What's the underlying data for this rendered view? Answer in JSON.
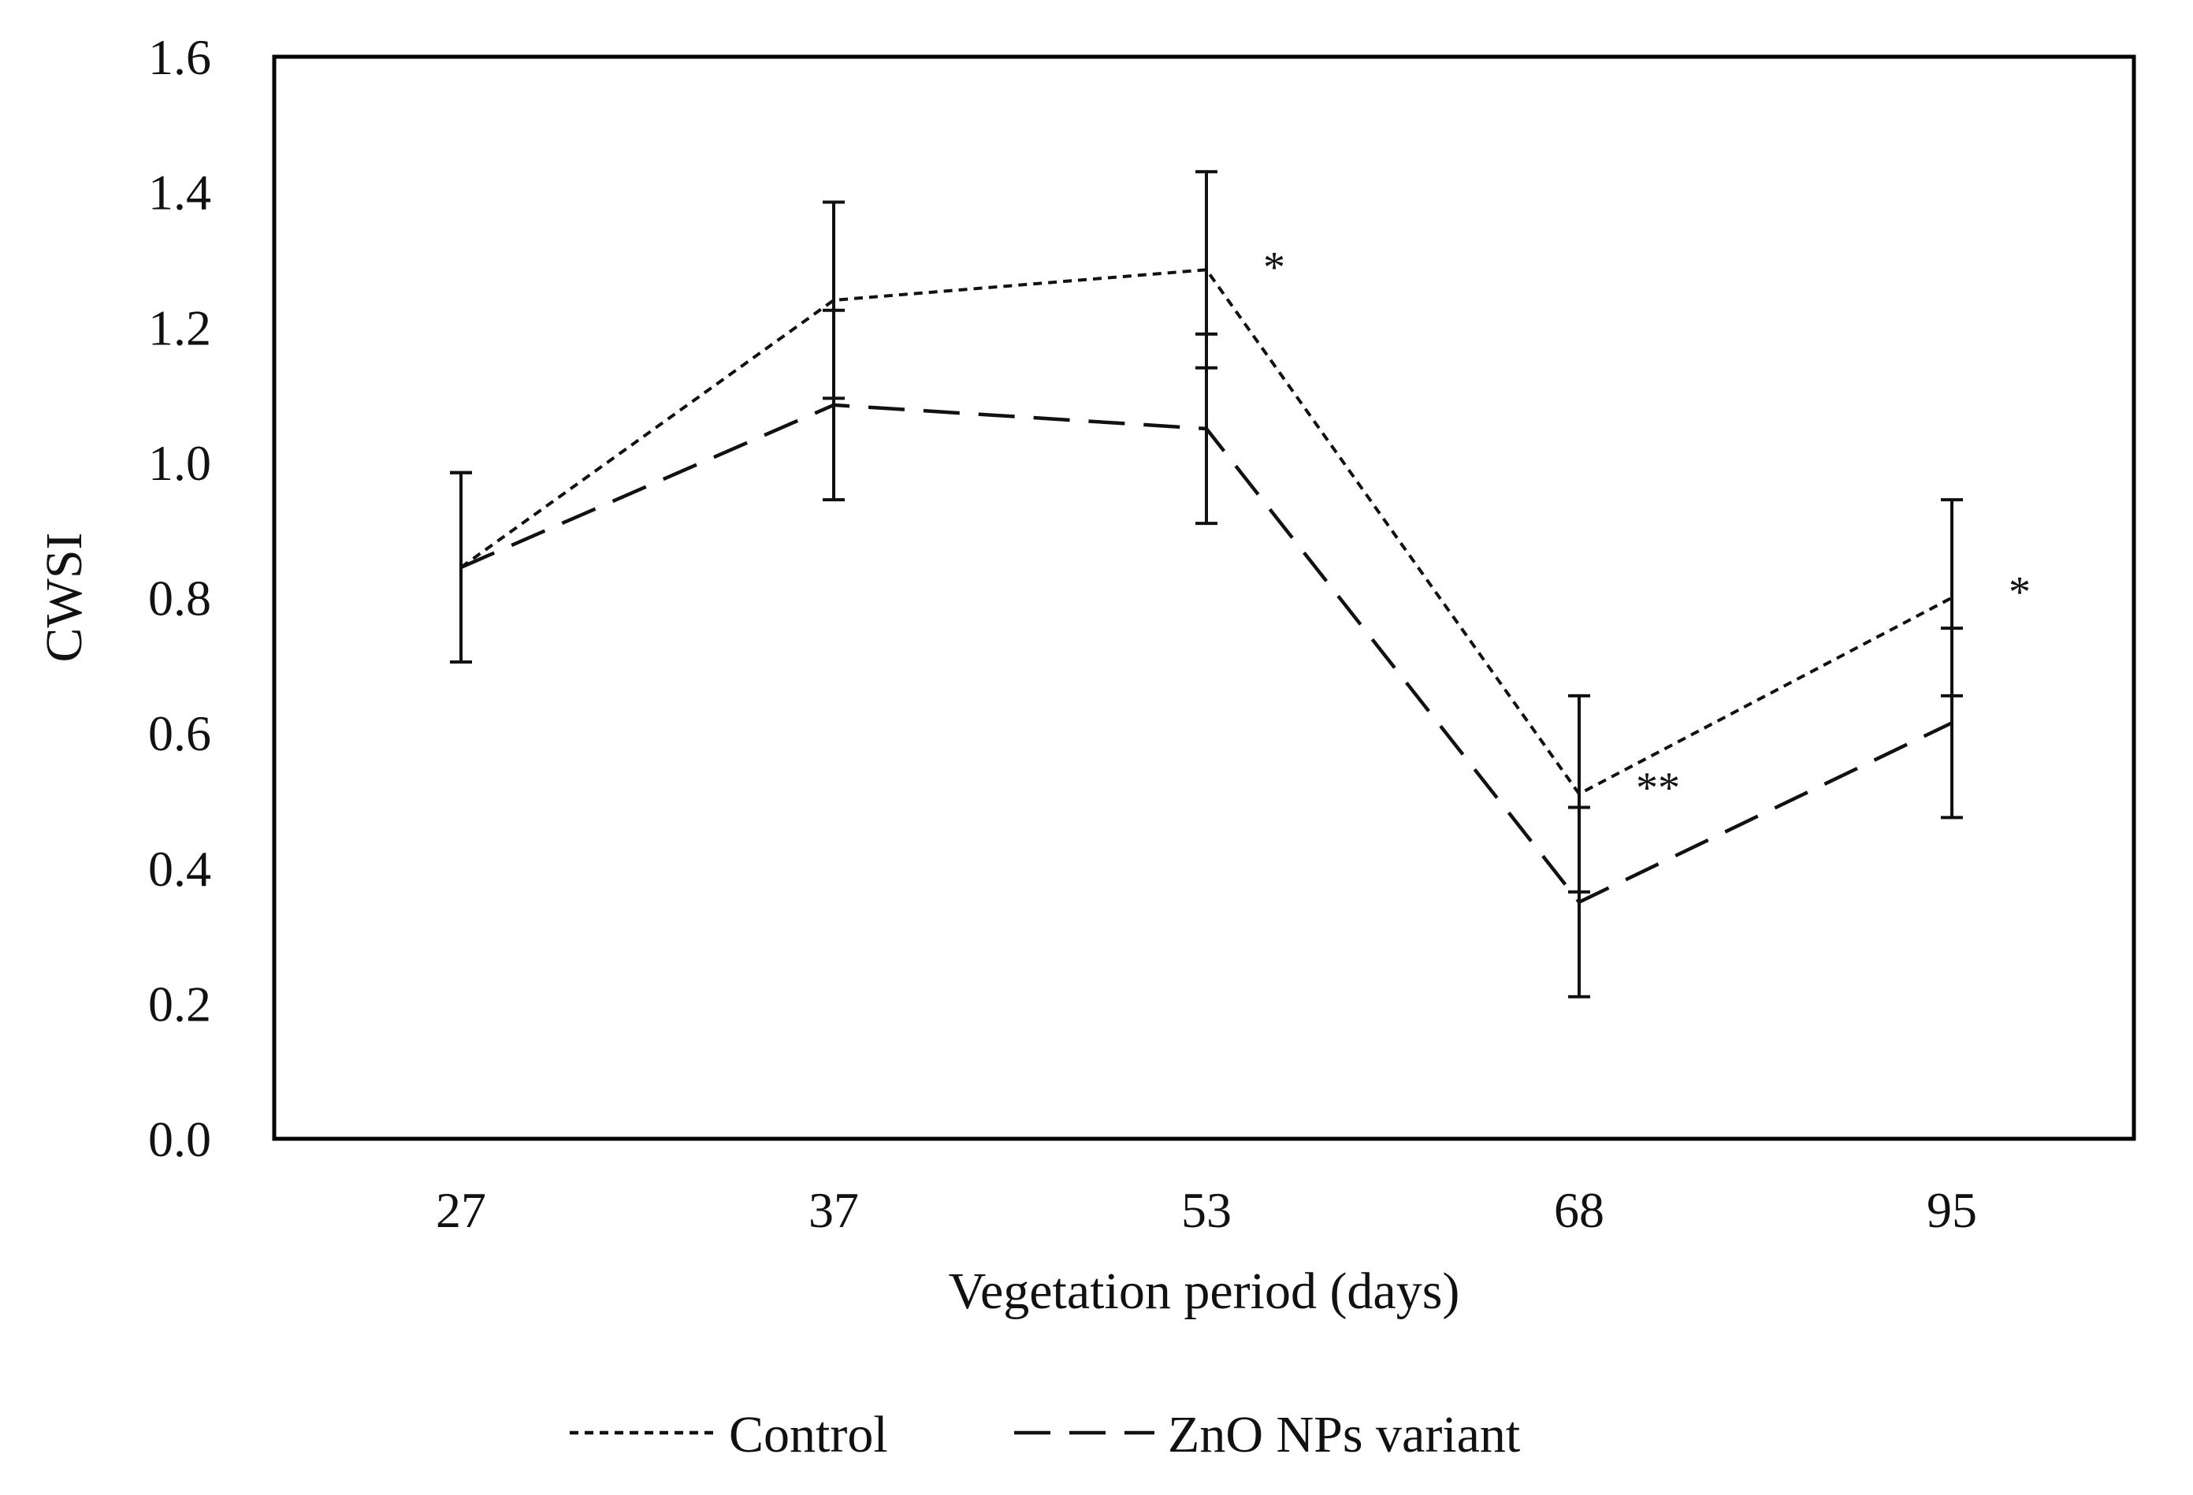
{
  "chart_data": {
    "type": "line",
    "title": "",
    "xlabel": "Vegetation period (days)",
    "ylabel": "CWSI",
    "categories": [
      "27",
      "37",
      "53",
      "68",
      "95"
    ],
    "ylim": [
      0,
      1.6
    ],
    "yticks": [
      "0.0",
      "0.2",
      "0.4",
      "0.6",
      "0.8",
      "1.0",
      "1.2",
      "1.4",
      "1.6"
    ],
    "grid": false,
    "legend_position": "bottom",
    "series": [
      {
        "name": "Control",
        "style": "dotted",
        "values": [
          0.845,
          1.24,
          1.285,
          0.51,
          0.8
        ],
        "error_low": [
          0.705,
          1.095,
          1.14,
          0.365,
          0.655
        ],
        "error_high": [
          0.985,
          1.385,
          1.43,
          0.655,
          0.945
        ]
      },
      {
        "name": "ZnO NPs variant",
        "style": "dashed",
        "values": [
          0.845,
          1.085,
          1.05,
          0.35,
          0.615
        ],
        "error_low": [
          0.705,
          0.945,
          0.91,
          0.21,
          0.475
        ],
        "error_high": [
          0.985,
          1.225,
          1.19,
          0.49,
          0.755
        ]
      }
    ],
    "annotations": [
      {
        "category_index": 2,
        "value": 1.3,
        "text": "*"
      },
      {
        "category_index": 3,
        "value": 0.53,
        "text": "**"
      },
      {
        "category_index": 4,
        "value": 0.82,
        "text": "*"
      }
    ],
    "colors": {
      "line": "#111111",
      "axis": "#000000",
      "background": "#ffffff"
    }
  }
}
